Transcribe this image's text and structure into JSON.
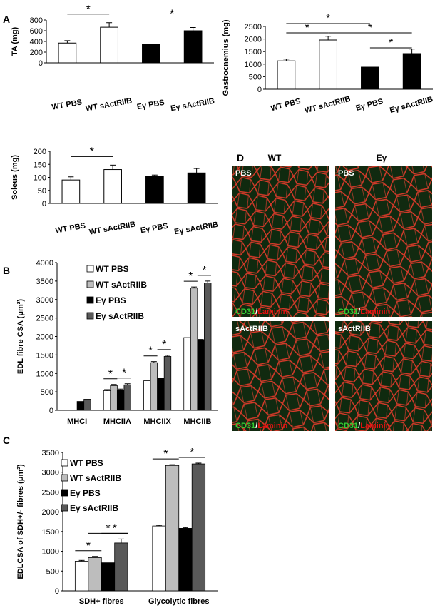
{
  "colors": {
    "wt_pbs": "#ffffff",
    "wt_sact": "#bdbdbd",
    "ey_pbs": "#000000",
    "ey_sact": "#595959",
    "green": "#33cc33",
    "red": "#e01010"
  },
  "panel_labels": {
    "A": "A",
    "B": "B",
    "C": "C",
    "D": "D"
  },
  "chart_data": [
    {
      "id": "ta",
      "type": "bar",
      "categories": [
        "WT PBS",
        "WT sActRIIB",
        "Eγ PBS",
        "Eγ sActRIIB"
      ],
      "values": [
        370,
        665,
        340,
        600
      ],
      "errors": [
        45,
        85,
        0,
        60
      ],
      "colors": [
        "#ffffff",
        "#ffffff",
        "#000000",
        "#000000"
      ],
      "ylabel": "TA (mg)",
      "ylim": [
        0,
        800
      ],
      "yticks": [
        0,
        200,
        400,
        600,
        800
      ],
      "sig": [
        [
          0,
          1
        ],
        [
          2,
          3
        ]
      ]
    },
    {
      "id": "gastro",
      "type": "bar",
      "categories": [
        "WT PBS",
        "WT sActRIIB",
        "Eγ PBS",
        "Eγ sActRIIB"
      ],
      "values": [
        1130,
        1960,
        880,
        1420
      ],
      "errors": [
        70,
        150,
        0,
        180
      ],
      "colors": [
        "#ffffff",
        "#ffffff",
        "#000000",
        "#000000"
      ],
      "ylabel": "Gastrocnemius (mg)",
      "ylim": [
        0,
        2500
      ],
      "yticks": [
        0,
        500,
        1000,
        1500,
        2000,
        2500
      ],
      "sig": [
        [
          0,
          2
        ],
        [
          0,
          1
        ],
        [
          1,
          3
        ],
        [
          2,
          3
        ]
      ]
    },
    {
      "id": "soleus",
      "type": "bar",
      "categories": [
        "WT PBS",
        "WT sActRIIB",
        "Eγ PBS",
        "Eγ sActRIIB"
      ],
      "values": [
        90,
        130,
        105,
        117
      ],
      "errors": [
        12,
        17,
        4,
        17
      ],
      "colors": [
        "#ffffff",
        "#ffffff",
        "#000000",
        "#000000"
      ],
      "ylabel": "Soleus (mg)",
      "ylim": [
        0,
        200
      ],
      "yticks": [
        0,
        50,
        100,
        150,
        200
      ],
      "sig": [
        [
          0,
          1
        ]
      ]
    },
    {
      "id": "edl",
      "type": "bar",
      "categories": [
        "MHCI",
        "MHCIIA",
        "MHCIIX",
        "MHCIIB"
      ],
      "ylabel": "EDL fibre CSA (μm²)",
      "ylim": [
        0,
        4000
      ],
      "yticks": [
        0,
        500,
        1000,
        1500,
        2000,
        2500,
        3000,
        3500,
        4000
      ],
      "legend": [
        "WT PBS",
        "WT sActRIIB",
        "Eγ PBS",
        "Eγ sActRIIB"
      ],
      "series": [
        {
          "values": [
            0,
            530,
            800,
            1970
          ],
          "errors": [
            0,
            30,
            0,
            0
          ]
        },
        {
          "values": [
            0,
            670,
            1290,
            3310
          ],
          "errors": [
            0,
            30,
            30,
            30
          ]
        },
        {
          "values": [
            240,
            545,
            870,
            1890
          ],
          "errors": [
            0,
            30,
            0,
            30
          ]
        },
        {
          "values": [
            300,
            690,
            1460,
            3450
          ],
          "errors": [
            0,
            30,
            30,
            50
          ]
        }
      ],
      "sig": [
        [
          1,
          0,
          1
        ],
        [
          1,
          2,
          3
        ],
        [
          2,
          0,
          1
        ],
        [
          2,
          2,
          3
        ],
        [
          3,
          0,
          1
        ],
        [
          3,
          2,
          3
        ]
      ]
    },
    {
      "id": "sdh",
      "type": "bar",
      "categories": [
        "SDH+ fibres",
        "Glycolytic fibres"
      ],
      "ylabel": "EDLCSA of SDH+/- fibres (μm²)",
      "ylim": [
        0,
        3500
      ],
      "yticks": [
        0,
        500,
        1000,
        1500,
        2000,
        2500,
        3000,
        3500
      ],
      "legend": [
        "WT PBS",
        "WT sActRIIB",
        "Eγ PBS",
        "Eγ sActRIIB"
      ],
      "series": [
        {
          "values": [
            750,
            1640
          ],
          "errors": [
            20,
            20
          ]
        },
        {
          "values": [
            840,
            3170
          ],
          "errors": [
            30,
            20
          ]
        },
        {
          "values": [
            710,
            1580
          ],
          "errors": [
            0,
            20
          ]
        },
        {
          "values": [
            1210,
            3210
          ],
          "errors": [
            100,
            20
          ]
        }
      ],
      "sig": [
        [
          0,
          0,
          1
        ],
        [
          0,
          1,
          3
        ],
        [
          0,
          2,
          3
        ],
        [
          1,
          0,
          1
        ],
        [
          1,
          2,
          3
        ]
      ]
    }
  ],
  "star": "*",
  "micrographs": {
    "col_wt": "WT",
    "col_ey": "Eγ",
    "row_pbs": "PBS",
    "row_sact": "sActRIIB",
    "stain_cd31": "CD31",
    "stain_sep": "/",
    "stain_lam": "Laminin"
  }
}
